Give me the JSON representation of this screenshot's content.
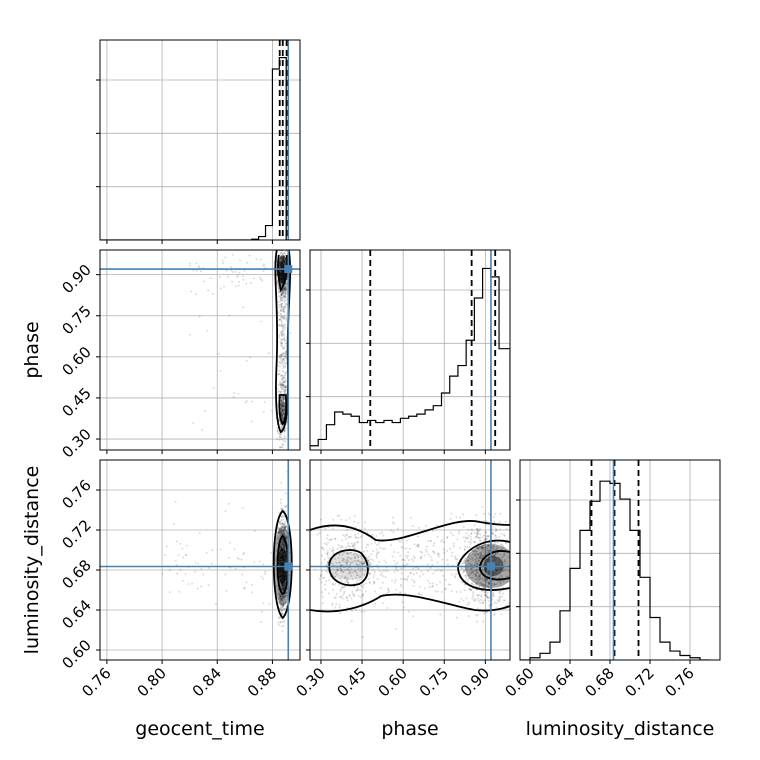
{
  "chart_data": {
    "type": "corner",
    "truth_color": "#4682b4",
    "hist_color": "#000000",
    "grid": true,
    "axis_labels": {
      "geocent_time": "geocent_time",
      "phase": "phase",
      "luminosity_distance": "luminosity_distance"
    },
    "parameters": [
      {
        "name": "geocent_time",
        "label": "geocent_time",
        "range": [
          0.755,
          0.9
        ],
        "ticks": [
          "0.76",
          "0.80",
          "0.84",
          "0.88"
        ],
        "truth": 0.8915,
        "quantiles": [
          0.8853,
          0.8875,
          0.8903
        ],
        "hist": {
          "bins": [
            0.755,
            0.76,
            0.765,
            0.77,
            0.775,
            0.78,
            0.785,
            0.79,
            0.795,
            0.8,
            0.805,
            0.81,
            0.815,
            0.82,
            0.825,
            0.83,
            0.835,
            0.84,
            0.845,
            0.85,
            0.855,
            0.86,
            0.865,
            0.87,
            0.875,
            0.88,
            0.885,
            0.89,
            0.895,
            0.9
          ],
          "counts": [
            0,
            0,
            0,
            0,
            0,
            0,
            0,
            0,
            0,
            0,
            0,
            0,
            0,
            0,
            0,
            0,
            0,
            0,
            0,
            0,
            0,
            0,
            0.2,
            0.9,
            3.8,
            45,
            48,
            0,
            0
          ],
          "note_ymax": 50
        }
      },
      {
        "name": "phase",
        "label": "phase",
        "range": [
          0.26,
          0.99
        ],
        "ticks": [
          "0.30",
          "0.45",
          "0.60",
          "0.75",
          "0.90"
        ],
        "truth": 0.9205,
        "quantiles": [
          0.48,
          0.85,
          0.936
        ],
        "hist": {
          "bins": [
            0.26,
            0.29,
            0.32,
            0.35,
            0.38,
            0.41,
            0.44,
            0.47,
            0.5,
            0.53,
            0.56,
            0.59,
            0.62,
            0.65,
            0.68,
            0.71,
            0.74,
            0.77,
            0.8,
            0.83,
            0.86,
            0.89,
            0.92,
            0.95,
            0.99
          ],
          "counts": [
            2,
            5,
            12,
            18,
            17,
            16,
            13,
            14,
            13,
            14,
            13,
            15,
            16,
            17,
            19,
            21,
            27,
            35,
            40,
            52,
            72,
            86,
            82,
            48
          ],
          "ymax": 90
        }
      },
      {
        "name": "luminosity_distance",
        "label": "luminosity_distance",
        "range": [
          0.59,
          0.79
        ],
        "ticks": [
          "0.60",
          "0.64",
          "0.68",
          "0.72",
          "0.76"
        ],
        "truth": 0.6835,
        "quantiles": [
          0.6615,
          0.6845,
          0.7085
        ],
        "hist": {
          "bins": [
            0.59,
            0.6,
            0.61,
            0.62,
            0.63,
            0.64,
            0.65,
            0.66,
            0.67,
            0.68,
            0.69,
            0.7,
            0.71,
            0.72,
            0.73,
            0.74,
            0.75,
            0.76,
            0.77,
            0.78
          ],
          "counts": [
            0,
            1,
            3,
            8,
            22,
            41,
            58,
            71,
            80,
            79,
            72,
            58,
            37,
            19,
            8,
            4,
            2,
            1,
            0
          ],
          "ymax": 85
        }
      }
    ],
    "scatter": [
      {
        "x_param": "geocent_time",
        "y_param": "phase",
        "center": [
          0.888,
          0.62
        ]
      },
      {
        "x_param": "geocent_time",
        "y_param": "luminosity_distance",
        "center": [
          0.888,
          0.685
        ]
      },
      {
        "x_param": "phase",
        "y_param": "luminosity_distance",
        "center": [
          0.65,
          0.684
        ]
      }
    ]
  }
}
